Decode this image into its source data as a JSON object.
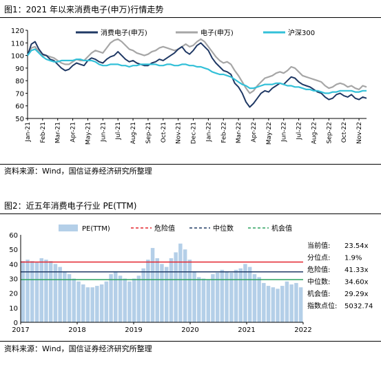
{
  "figure1": {
    "title": "图1：2021 年以来消费电子(申万)行情走势",
    "source": "资料来源：Wind，国信证券经济研究所整理"
  },
  "figure2": {
    "title": "图2：近五年消费电子行业 PE(TTM)",
    "source": "资料来源：Wind，国信证券经济研究所整理",
    "stats": [
      {
        "label": "当前值:",
        "value": "23.54x"
      },
      {
        "label": "分位点:",
        "value": "1.9%"
      },
      {
        "label": "危险值:",
        "value": "41.33x"
      },
      {
        "label": "中位数:",
        "value": "34.60x"
      },
      {
        "label": "机会值:",
        "value": "29.29x"
      },
      {
        "label": "指数点位:",
        "value": "5032.74"
      }
    ]
  },
  "chart_data": [
    {
      "type": "line",
      "title": "",
      "xlabel": "",
      "ylabel": "",
      "ylim": [
        50,
        120
      ],
      "yticks": [
        50,
        60,
        70,
        80,
        90,
        100,
        110,
        120
      ],
      "grid": false,
      "legend_position": "top",
      "categories": [
        "Jan-21",
        "Feb-21",
        "Mar-21",
        "Apr-21",
        "May-21",
        "Jun-21",
        "Jul-21",
        "Aug-21",
        "Sep-21",
        "Oct-21",
        "Nov-21",
        "Dec-21",
        "Jan-22",
        "Feb-22",
        "Mar-22",
        "Apr-22",
        "May-22",
        "Jun-22",
        "Jul-22",
        "Aug-22",
        "Sep-22",
        "Oct-22",
        "Nov-22"
      ],
      "x": [
        0,
        0.25,
        0.5,
        0.75,
        1,
        1.25,
        1.5,
        1.75,
        2,
        2.25,
        2.5,
        2.75,
        3,
        3.25,
        3.5,
        3.75,
        4,
        4.25,
        4.5,
        4.75,
        5,
        5.25,
        5.5,
        5.75,
        6,
        6.25,
        6.5,
        6.75,
        7,
        7.25,
        7.5,
        7.75,
        8,
        8.25,
        8.5,
        8.75,
        9,
        9.25,
        9.5,
        9.75,
        10,
        10.25,
        10.5,
        10.75,
        11,
        11.25,
        11.5,
        11.75,
        12,
        12.25,
        12.5,
        12.75,
        13,
        13.25,
        13.5,
        13.75,
        14,
        14.25,
        14.5,
        14.75,
        15,
        15.25,
        15.5,
        15.75,
        16,
        16.25,
        16.5,
        16.75,
        17,
        17.25,
        17.5,
        17.75,
        18,
        18.25,
        18.5,
        18.75,
        19,
        19.25,
        19.5,
        19.75,
        20,
        20.25,
        20.5,
        20.75,
        21,
        21.25,
        21.5,
        21.75,
        22,
        22.25,
        22.5
      ],
      "series": [
        {
          "name": "消费电子(申万)",
          "color": "#1f3864",
          "values": [
            100,
            109,
            111,
            105,
            101,
            100,
            97,
            96,
            93,
            90,
            88,
            89,
            92,
            94,
            93,
            92,
            96,
            98,
            97,
            95,
            94,
            97,
            99,
            100,
            103,
            100,
            97,
            95,
            96,
            94,
            93,
            92,
            92,
            94,
            95,
            97,
            96,
            98,
            100,
            102,
            105,
            107,
            103,
            101,
            104,
            108,
            110,
            107,
            104,
            98,
            94,
            91,
            88,
            87,
            85,
            78,
            75,
            70,
            63,
            59,
            62,
            66,
            70,
            72,
            71,
            74,
            76,
            78,
            77,
            80,
            83,
            82,
            79,
            77,
            76,
            75,
            73,
            71,
            70,
            67,
            65,
            66,
            69,
            70,
            68,
            67,
            69,
            66,
            65,
            67,
            66
          ]
        },
        {
          "name": "电子(申万)",
          "color": "#a6a6a6",
          "values": [
            100,
            106,
            107,
            103,
            100,
            100,
            99,
            98,
            96,
            94,
            93,
            93,
            95,
            97,
            96,
            96,
            99,
            102,
            104,
            103,
            102,
            106,
            110,
            112,
            113,
            111,
            108,
            105,
            104,
            102,
            101,
            100,
            101,
            103,
            104,
            106,
            107,
            106,
            105,
            104,
            105,
            107,
            109,
            107,
            108,
            111,
            113,
            111,
            107,
            103,
            99,
            96,
            94,
            95,
            93,
            88,
            84,
            79,
            74,
            70,
            72,
            76,
            79,
            82,
            83,
            84,
            86,
            87,
            86,
            88,
            91,
            90,
            87,
            84,
            83,
            82,
            81,
            80,
            79,
            76,
            74,
            75,
            77,
            78,
            77,
            75,
            76,
            74,
            73,
            76,
            75
          ]
        },
        {
          "name": "沪深300",
          "color": "#33c0d8",
          "values": [
            100,
            104,
            105,
            102,
            99,
            97,
            96,
            95,
            95,
            96,
            96,
            96,
            96,
            97,
            97,
            96,
            96,
            96,
            95,
            93,
            92,
            92,
            93,
            93,
            93,
            92,
            92,
            91,
            92,
            92,
            93,
            93,
            93,
            93,
            93,
            92,
            92,
            93,
            93,
            92,
            92,
            93,
            93,
            92,
            92,
            91,
            91,
            90,
            89,
            87,
            86,
            85,
            85,
            84,
            83,
            81,
            79,
            77,
            76,
            74,
            74,
            75,
            76,
            77,
            77,
            77,
            78,
            78,
            77,
            76,
            76,
            75,
            75,
            74,
            73,
            73,
            72,
            72,
            71,
            70,
            70,
            71,
            71,
            72,
            72,
            72,
            72,
            71,
            71,
            72,
            72
          ]
        }
      ]
    },
    {
      "type": "bar",
      "title": "",
      "xlabel": "",
      "ylabel": "",
      "ylim": [
        0,
        60
      ],
      "yticks": [
        0,
        10,
        20,
        30,
        40,
        50,
        60
      ],
      "grid": false,
      "legend_position": "top",
      "x_tick_labels": [
        "2017",
        "2018",
        "2019",
        "2020",
        "2021",
        "2022"
      ],
      "x_tick_positions": [
        0,
        12,
        24,
        36,
        48,
        60
      ],
      "series": [
        {
          "name": "PE(TTM)",
          "color": "#b4cfe8",
          "x": [
            0,
            1,
            2,
            3,
            4,
            5,
            6,
            7,
            8,
            9,
            10,
            11,
            12,
            13,
            14,
            15,
            16,
            17,
            18,
            19,
            20,
            21,
            22,
            23,
            24,
            25,
            26,
            27,
            28,
            29,
            30,
            31,
            32,
            33,
            34,
            35,
            36,
            37,
            38,
            39,
            40,
            41,
            42,
            43,
            44,
            45,
            46,
            47,
            48,
            49,
            50,
            51,
            52,
            53,
            54,
            55,
            56,
            57,
            58,
            59,
            60
          ],
          "values": [
            42,
            43,
            42,
            41,
            44,
            43,
            42,
            40,
            38,
            35,
            33,
            30,
            28,
            26,
            24,
            24,
            25,
            26,
            28,
            33,
            35,
            32,
            30,
            28,
            30,
            32,
            37,
            43,
            51,
            44,
            40,
            38,
            44,
            48,
            54,
            50,
            43,
            35,
            31,
            30,
            29,
            33,
            34,
            36,
            35,
            34,
            36,
            37,
            40,
            38,
            33,
            31,
            27,
            25,
            24,
            23,
            25,
            28,
            26,
            27,
            24
          ]
        },
        {
          "name": "危险值",
          "color": "#e3232c",
          "value": 41.33
        },
        {
          "name": "中位数",
          "color": "#1f3864",
          "value": 34.6
        },
        {
          "name": "机会值",
          "color": "#2ca25f",
          "value": 29.29
        }
      ]
    }
  ]
}
